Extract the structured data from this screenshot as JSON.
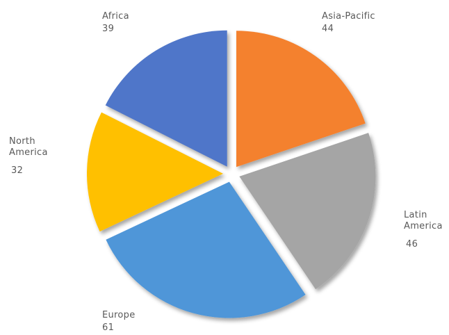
{
  "chart_data": {
    "type": "pie",
    "categories": [
      "Asia-Pacific",
      "Latin America",
      "Europe",
      "North America",
      "Africa"
    ],
    "values": [
      44,
      46,
      61,
      32,
      39
    ],
    "colors": [
      "#f4812f",
      "#a5a5a5",
      "#4f96d8",
      "#ffc000",
      "#4f76c9"
    ]
  }
}
